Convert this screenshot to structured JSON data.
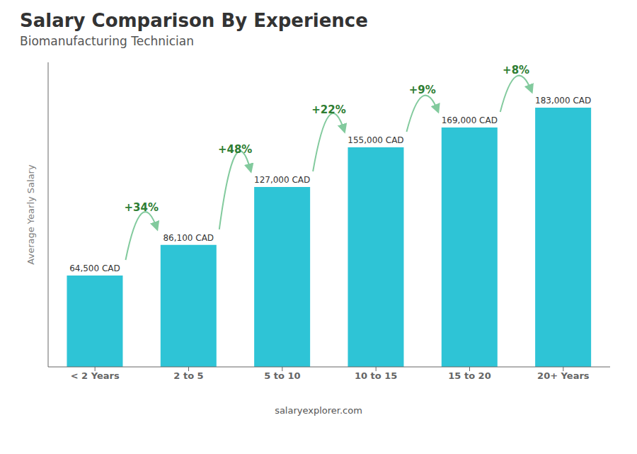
{
  "chart_data": {
    "type": "bar",
    "title": "Salary Comparison By Experience",
    "subtitle": "Biomanufacturing Technician",
    "categories": [
      "< 2 Years",
      "2 to 5",
      "5 to 10",
      "10 to 15",
      "15 to 20",
      "20+ Years"
    ],
    "values": [
      64500,
      86100,
      127000,
      155000,
      169000,
      183000
    ],
    "value_labels": [
      "64,500 CAD",
      "86,100 CAD",
      "127,000 CAD",
      "155,000 CAD",
      "169,000 CAD",
      "183,000 CAD"
    ],
    "data_labels": true,
    "color": "#2EC4D6",
    "ylabel": "Average Yearly Salary",
    "ylim": [
      0,
      215000
    ],
    "tick_labels": "x",
    "grid": false,
    "annotations": [
      {
        "text": "+34%",
        "from": "< 2 Years",
        "to": "2 to 5"
      },
      {
        "text": "+48%",
        "from": "2 to 5",
        "to": "5 to 10"
      },
      {
        "text": "+22%",
        "from": "5 to 10",
        "to": "10 to 15"
      },
      {
        "text": "+9%",
        "from": "10 to 15",
        "to": "15 to 20"
      },
      {
        "text": "+8%",
        "from": "15 to 20",
        "to": "20+ Years"
      },
      {
        "text": "salaryexplorer.com"
      }
    ]
  }
}
